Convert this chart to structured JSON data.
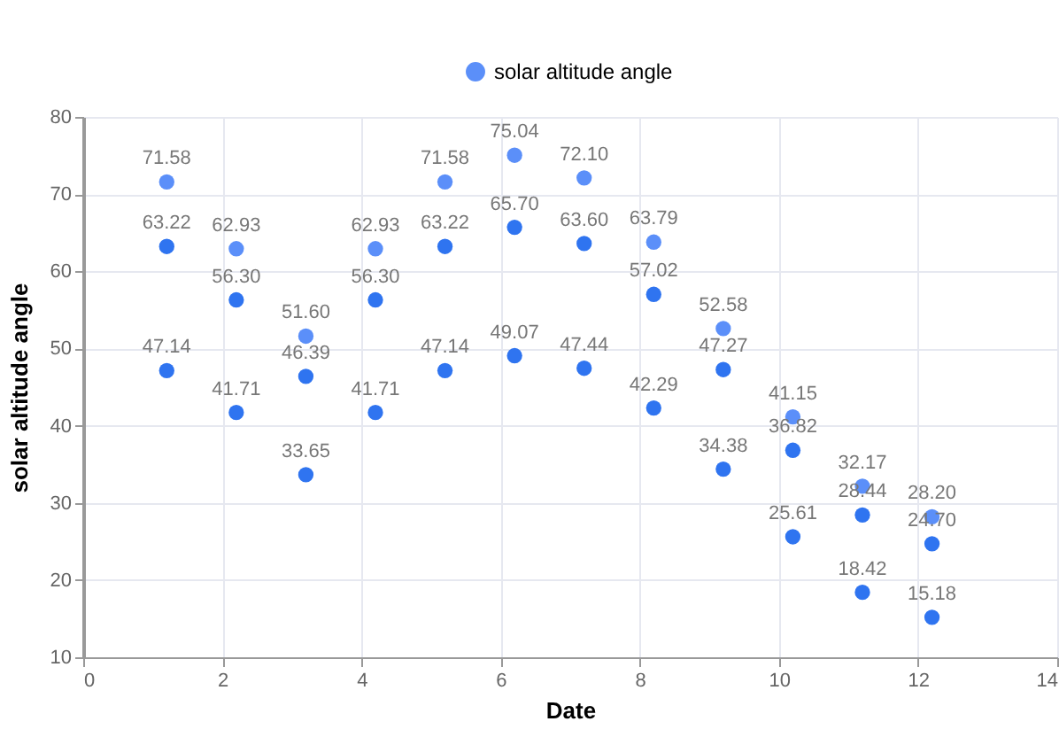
{
  "chart_data": {
    "type": "scatter",
    "xlabel": "Date",
    "ylabel": "solar altitude angle",
    "xlim": [
      0,
      14
    ],
    "xticks": [
      0,
      2,
      4,
      6,
      8,
      10,
      12,
      14
    ],
    "ylim": [
      10,
      80
    ],
    "yticks": [
      10,
      20,
      30,
      40,
      50,
      60,
      70,
      80
    ],
    "grid": true,
    "legend": "top",
    "marker": "circle",
    "x": [
      1.2,
      2.2,
      3.2,
      4.2,
      5.2,
      6.2,
      7.2,
      8.2,
      9.2,
      10.2,
      11.2,
      12.2
    ],
    "series": [
      {
        "name": "solar altitude angle",
        "color": "#5b8ff9",
        "values": [
          71.58,
          62.93,
          51.6,
          62.93,
          71.58,
          75.04,
          72.1,
          63.79,
          52.58,
          41.15,
          32.17,
          28.2
        ],
        "value_labels": [
          "71.58",
          "62.93",
          "51.60",
          "62.93",
          "71.58",
          "75.04",
          "72.10",
          "63.79",
          "52.58",
          "41.15",
          "32.17",
          "28.20"
        ]
      },
      {
        "color": "#2f74f0",
        "values": [
          63.22,
          56.3,
          46.39,
          56.3,
          63.22,
          65.7,
          63.6,
          57.02,
          47.27,
          36.82,
          28.44,
          24.7
        ],
        "value_labels": [
          "63.22",
          "56.30",
          "46.39",
          "56.30",
          "63.22",
          "65.70",
          "63.60",
          "57.02",
          "47.27",
          "36.82",
          "28.44",
          "24.70"
        ]
      },
      {
        "color": "#2f74f0",
        "values": [
          47.14,
          41.71,
          33.65,
          41.71,
          47.14,
          49.07,
          47.44,
          42.29,
          34.38,
          25.61,
          18.42,
          15.18
        ],
        "value_labels": [
          "47.14",
          "41.71",
          "33.65",
          "41.71",
          "47.14",
          "49.07",
          "47.44",
          "42.29",
          "34.38",
          "25.61",
          "18.42",
          "15.18"
        ]
      }
    ]
  }
}
